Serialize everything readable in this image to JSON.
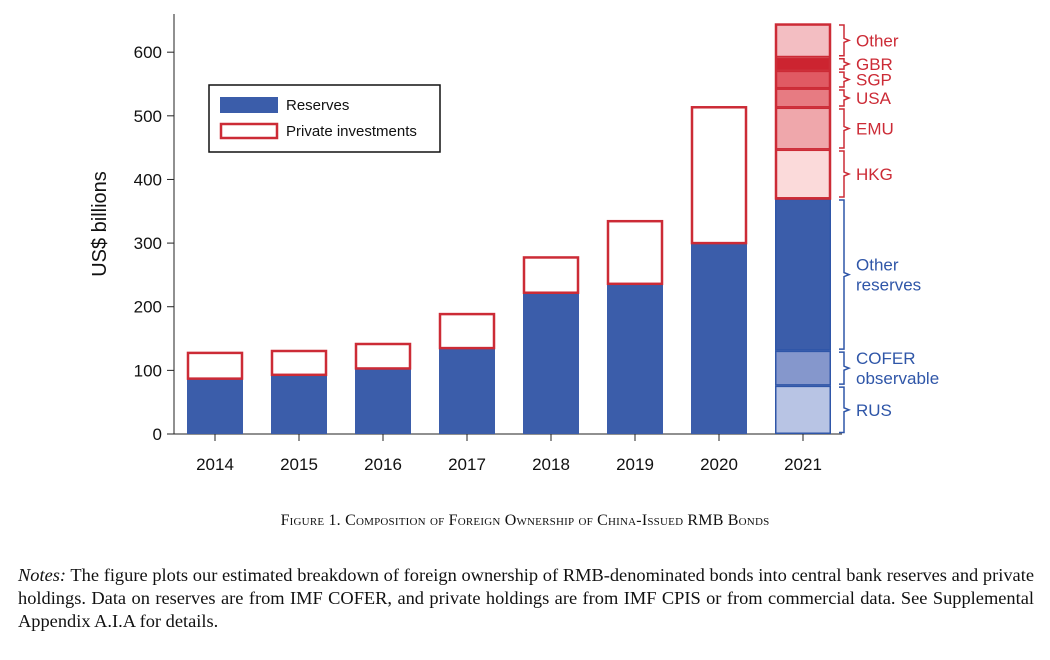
{
  "chart_data": {
    "type": "bar",
    "stacked": true,
    "categories": [
      "2014",
      "2015",
      "2016",
      "2017",
      "2018",
      "2019",
      "2020",
      "2021"
    ],
    "ylabel": "US$ billions",
    "ylim": [
      0,
      660
    ],
    "yticks": [
      0,
      100,
      200,
      300,
      400,
      500,
      600
    ],
    "grid": false,
    "legend_position": "top-left",
    "legend": [
      {
        "label": "Reserves",
        "style": "filled",
        "color": "#3b5daa"
      },
      {
        "label": "Private investments",
        "style": "outline",
        "color": "#cc2b36"
      }
    ],
    "series": [
      {
        "name": "Reserves",
        "values": [
          87,
          93,
          103,
          135,
          222,
          236,
          300,
          370
        ]
      },
      {
        "name": "Private investments",
        "values": [
          42,
          39,
          40,
          55,
          57,
          100,
          215,
          275
        ]
      }
    ],
    "breakdown_2021": {
      "reserves": [
        {
          "label": "RUS",
          "from": 0,
          "to": 76,
          "color": "#b8c4e4"
        },
        {
          "label": "COFER observable",
          "from": 76,
          "to": 131,
          "color": "#8597cc"
        },
        {
          "label": "Other reserves",
          "from": 131,
          "to": 370,
          "color": "#3b5daa"
        }
      ],
      "private": [
        {
          "label": "HKG",
          "from": 370,
          "to": 447,
          "color": "#fbdada"
        },
        {
          "label": "EMU",
          "from": 447,
          "to": 513,
          "color": "#efa7ab"
        },
        {
          "label": "USA",
          "from": 513,
          "to": 543,
          "color": "#e77b82"
        },
        {
          "label": "SGP",
          "from": 543,
          "to": 571,
          "color": "#e05a63"
        },
        {
          "label": "GBR",
          "from": 571,
          "to": 592,
          "color": "#cc2430"
        },
        {
          "label": "Other",
          "from": 592,
          "to": 645,
          "color": "#f3bec2"
        }
      ]
    },
    "colors": {
      "reserves": "#3b5daa",
      "private_outline": "#cc2b36",
      "reserves_annotation": "#2f56a8",
      "private_annotation": "#cc2b36"
    }
  },
  "caption": "Figure 1. Composition of Foreign Ownership of China-Issued RMB Bonds",
  "notes": {
    "label": "Notes:",
    "text": " The figure plots our estimated breakdown of foreign ownership of RMB-denominated bonds into central bank reserves and private holdings. Data on reserves are from IMF COFER, and private holdings are from IMF CPIS or from commercial data. See Supplemental Appendix A.I.A for details."
  }
}
